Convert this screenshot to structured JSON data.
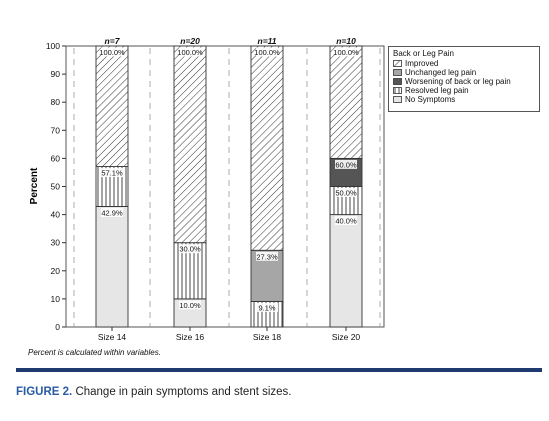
{
  "chart_data": {
    "type": "bar",
    "stacked": true,
    "ylabel": "Percent",
    "ylim": [
      0,
      100
    ],
    "yticks": [
      0,
      10,
      20,
      30,
      40,
      50,
      60,
      70,
      80,
      90,
      100
    ],
    "categories": [
      "Size 14",
      "Size 16",
      "Size 18",
      "Size 20"
    ],
    "counts": [
      "n=7",
      "n=20",
      "n=11",
      "n=10"
    ],
    "legend_title": "Back or Leg Pain",
    "legend_position": "top-right",
    "grid": "dashed vertical gridlines between bars",
    "series": [
      {
        "name": "No Symptoms",
        "color": "#e6e6e6",
        "pattern": "none",
        "values": [
          42.9,
          10.0,
          0,
          40.0
        ],
        "labels": [
          "42.9%",
          "10.0%",
          "",
          "40.0%"
        ]
      },
      {
        "name": "Resolved leg pain",
        "color": "#ffffff",
        "pattern": "vertical-lines",
        "values": [
          14.2,
          20.0,
          9.1,
          10.0
        ],
        "labels": [
          "57.1%",
          "30.0%",
          "9.1%",
          "50.0%"
        ]
      },
      {
        "name": "Worsening of back or leg pain",
        "color": "#555555",
        "pattern": "none",
        "values": [
          0,
          0,
          0,
          10.0
        ],
        "labels": [
          "",
          "",
          "",
          "60.0%"
        ]
      },
      {
        "name": "Unchanged leg pain",
        "color": "#a6a6a6",
        "pattern": "none",
        "values": [
          0,
          0,
          18.2,
          0
        ],
        "labels": [
          "",
          "",
          "27.3%",
          ""
        ]
      },
      {
        "name": "Improved",
        "color": "#ffffff",
        "pattern": "diagonal-lines",
        "values": [
          42.9,
          70.0,
          72.7,
          40.0
        ],
        "labels": [
          "100.0%",
          "100.0%",
          "100.0%",
          "100.0%"
        ]
      }
    ],
    "legend_order": [
      "Improved",
      "Unchanged leg pain",
      "Worsening of back or leg pain",
      "Resolved leg pain",
      "No Symptoms"
    ]
  },
  "footnote": "Percent is calculated within variables.",
  "caption": {
    "label": "FIGURE 2.",
    "text": "Change in pain symptoms and stent sizes."
  }
}
